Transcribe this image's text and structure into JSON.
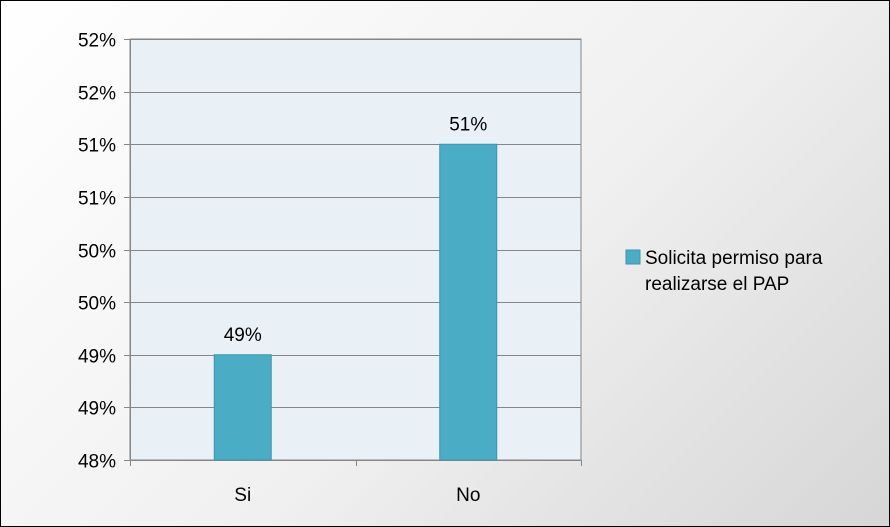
{
  "chart_data": {
    "type": "bar",
    "categories": [
      "Si",
      "No"
    ],
    "series": [
      {
        "name": "Solicita permiso para realizarse el PAP",
        "values": [
          49,
          51
        ],
        "data_labels": [
          "49%",
          "51%"
        ],
        "color": "#4bacc6"
      }
    ],
    "ylim": [
      48,
      52
    ],
    "yticks": [
      48,
      48.5,
      49,
      49.5,
      50,
      50.5,
      51,
      51.5,
      52
    ],
    "ytick_labels": [
      "48%",
      "49%",
      "49%",
      "50%",
      "50%",
      "51%",
      "51%",
      "52%",
      "52%"
    ],
    "grid": true,
    "legend": {
      "position": "right",
      "lines": [
        "Solicita permiso para",
        "realizarse el PAP"
      ]
    },
    "plot_background": "#eaf1f6",
    "title": "",
    "xlabel": "",
    "ylabel": ""
  }
}
